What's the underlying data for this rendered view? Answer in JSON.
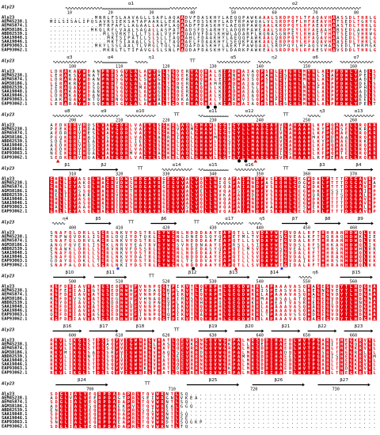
{
  "ref_label": "Aly23",
  "names": [
    "Aly23",
    "AEM45238.1",
    "AEM45874.1",
    "AGM38186.1",
    "ABD82539.1",
    "SAA19848.1",
    "SAA19846.1",
    "EAP93063.1",
    "EAP93062.1"
  ],
  "blocks": [
    {
      "structure": [
        "α1",
        "α2"
      ],
      "numbers": [
        "10",
        "20",
        "30",
        "40",
        "50",
        "60",
        "70",
        "80"
      ],
      "rows": [
        "...........MNRLFSLAAVAGLLSAPLAQAADVFDASKHYLAEQQPAWKAAALSRDPQYLTFAQAVHAASSDLTHRLG",
        "MILSISALIPQSAVRSIEKSATAPAAKLLEKAADLFDSSKHYLADTRPAWQALVLSRDPQFLHFAEAVHATSEDLTGRYG",
        "............MTRFAFLLAGAALLAAPLAQAADFFDASKHYLAEQRPAWQAALKRDPQYLRFAEAVHAASTDLTHRLG",
        "..........MKQLRFLVAALSAGALLASPATAADSFDSARHYLADQRPAWEAALSRDPEYLRFAEAAHARSEDLAHRFG",
        ".............MLSVRKTLLLTSLALVVPPAQADVFDASKHWLADARPLWQNASGNPEYLRHAETVHATSEDLVHRWG",
        "..............MKTSIPATLLSLSLLTAQAAHLFDAAKHYLAEQQPAWKAALQRDPQYLRFAQAVHAASEDLTHRLG",
        "..............MKTSIAAALLSLSLLTAQAAELFDAAKHYLSEQKPAWKAALERDPQYLRFAQAVHAASEDLTHRLG",
        "...........MKYLSSLAALTLVMGLTQLSAAQAFDASKHYLAEKTPAWQAALSRDPQYLHFAQSVHAASEDLTHRMGK",
        ".............MKRLTLTIFAVGLSLSNLFAQDAFDASKHYLDARKPAWKEALSRDPQYLRFAESVHAVSDDLTHRLG"
      ]
    },
    {
      "structure": [
        "α3",
        "α4",
        "η1",
        "TT",
        "α5",
        "η2",
        "α6",
        "α7"
      ],
      "numbers": [
        "100",
        "110",
        "120",
        "130",
        "140",
        "150",
        "160"
      ],
      "rows": [
        "LDRAKAYWDANPNDSGVLALAWYGLTGDERYAQHALKIADWAIAQPSHLETGHLMYNLALPYDWLYADLS",
        "LERAKSYWNATPNDSAVLALAWYALSGDEKYAQHALDIANWAVQQPAHLESGHLMYNLSLAYDWLYPELS",
        "LDRARAYWDANPNDSGVLALSWYGLTGDERYAQHALEIADWAISQPSHLETGHLMYNLALPYDWLYADLT",
        "LERAKRYWDSAPNDTGVLALAWYALTGDERYAEHAMRIADWAIAQPTHLETGHLLYNLALPYDWLYDELS",
        "IERAQAYWDSQPNDSGVLAMAWYGLSGNEKYAQHSLKIAEWAISLPSHLETGHLMYNFALPYDWLYPHLS",
        "LDRAKAYWDANPNDSGVLALAWYGLTGDERYAQHALKIADWAIAQPSHLETGHLMYNLALPYDWLYADLS",
        "LDRAKAYWDANPNDSGVLALAWYGLTGDEKYAQHALKIADWAIAQPSHLETGHLMYNLALPYDWLYADLS",
        "LAKAQAYWNTQPNDNGVLALGWYALTGDKAYAQHALTIARWVISQPSHFETGHLMYNLALPYDWLYEELS",
        "LERARAYWDSQPNDSGVLALAWYALTGDERYAQHALKIADWAIAQPSHLESGHLMYNLALPYDWLYPELT"
      ]
    },
    {
      "structure": [
        "α8",
        "α9",
        "α10",
        "TT",
        "α11",
        "α12",
        "TT",
        "η3",
        "α13"
      ],
      "numbers": [
        "200",
        "210",
        "220",
        "230",
        "240",
        "250",
        "260"
      ],
      "rows": [
        "AEDKQRVHQSLVAYGDRLVAEYLSGKRLAQLGHAWLGGTGYLLMADGAEVLAHAAHLKFPQAAELLRQAR",
        "PEEKQRIHDALVAYGDRLVAEYLSGKRVAQMGHAWLGGTGYLLMADGAEILAHAAHLKYPQASELLKRAR",
        "AEDRQRVHESLVAYGDRLVAEYLSGKRLAQLGHAWLGGTGYLLMADGAEVLAHAAHLKFPQAAELLRQAR",
        "PEQKQRIHASLVSYGDRLVAEYLAGRRIAQLGHAWMGGTGYLLMADGAEALAHAAHMKFPDAAALLRQAR",
        "SDEKQRLHEALVAYGDRLIEEYLSGKRLAQLGHAWLGGSGYLLMADGAEVLAHAAHLKYPDAAELLRKAR",
        "AEDKQRVHQSLVAYGDRLVAEYLSGKRLAQLGHAWLGGTGYLLMADGAEVLAHAAHLKFPQAAELLRQAR",
        "AEDKQRVHQSLVAYGDRLVAEYLSGKRLAQLGHAWLGGTGYLLMADGAEVLAHAAHLKFPQAAELLRQAR",
        "NEEKQRIHQALVAYGDRMVAEYLAGKRLAQLGHAWLGGTGYLLMADGAEILSHAAHLKFPQATELLRQAR",
        "SEDKQRVHQALVAYGDRLVAEYLSGKRLAQLGHAWLGGTGYLLMADGAEVLAHAAHLRFPEAAELLRQAR"
      ]
    },
    {
      "structure": [
        "β1",
        "β2",
        "TT",
        "α14",
        "α15",
        "α16",
        "TT",
        "β3",
        "β4"
      ],
      "numbers": [
        "310",
        "320",
        "330",
        "340",
        "350",
        "360",
        "370"
      ],
      "rows": [
        "GHLLEYASQLHAGRIDWSHDGAYRGEGVYALYQLLNVQAFAIANDFVSRQHLGEGWDKLFTTTDSGAVRP",
        "GHLLEYAKQLHAGRVDWSHDGAYREEGVYALYQLLNIQSFAIANDFASRQHLGDGWDKLFTTTDSGAVRA",
        "GHLLEYASQLHAGRIDWSHDGAYRGEGVYALYQLLNVQAFAIANDFVSRQHLGEGWDKLFTTTDSGAVRP",
        "GRLLEYSSQLHAGRIDWTHDGAYRGEGVYALYELLNVQAFSIANDFVSRQHLGEGWDKLFSSTDSGAIRP",
        "GELIEYAKRLHAGRVDWSHDGAYRGEGVYALYQLLNVKAFAIADDFVSRQHLGEGWQRLFTTSDSGALRP",
        "GHLLEYASQLHAGRIDWSHDGAYRGEGVYALYQLLNVQAFAIANDFVSRQHLGEGWDKLFTTTDSGAVRP",
        "GHLLEYASQLHAGRIDWSHDGAYRGEGVYALYQLLNVQAFAIANDFVSRQHLGEGWDKLFTTTDSGAVRP",
        "GALLEYAAQLHSGRIDWSHDGAYRGEGVYSLYQLLNVQAFAIANDFVARQHLGESWEKLFTTTDSGALRP",
        "GHLLEYASQLHAGRIDWSHDGAYRGEGVYALYQLLNVQAFAIANDFVSRQHLGEGWDKLFTTTDSGAVRP"
      ]
    },
    {
      "structure": [
        "η4",
        "β5",
        "TT",
        "β6",
        "TT",
        "α17",
        "η5",
        "β7",
        "β8",
        "β9"
      ],
      "numbers": [
        "400",
        "410",
        "420",
        "430",
        "440",
        "450",
        "460"
      ],
      "rows": [
        "SNAFQLDRLLSGRLNKVYDSTRLGYWGNLNDDDAAYEAPQTLLSVDAYWTGVDALRFTHHRANHDWQLVK",
        "TNPWQVDKLISGRLDQIYDTQKLGYWGNLDNEDSQYQAPETMLTVDAYWSGVEALKFTHQRAQHDWKLIE",
        "SNAFQLDRVLAGRLNKVYDSTRLGYWGNLNDDDAAFEAPQTLLSVDAYWTGVDALRFTHHRANHDWQLVK",
        "ANGFQVERLISGKLNRVYEATRVGYWGSVNEDNAAYEAPRSLLSIDAYWTGVDSLRFSHHKANHDWQLIK",
        "ENAWKLDRLLSGRVNNVFDSSRLGYWGNLNDEDASYQAPQTLMSVDAYWSGVEALRYTHHRSNHDWHLVR",
        "SNAFQLDRLLSGRLNKVYDSTRLGYWGNLNDDDAAYEAPQTLLSVDAYWTGVDALRFTHHRANHDWQLVK",
        "SNAFQLDRLLSGRLNKVYDATRLGYWGNLNDDDAAYEAPQTLLSVDAYWTGVDALRFTHHRANHDWQLVK",
        "GDAYQLDKLLTGRLNEVYDSTRLGYWGNLTEDDVAYEAPQTLLSVDAYWTGVDAIRFTHHRSNHDWQLVK",
        "SNAFALDRLLSGRLNKIYDSTRLGYWGNLNDDDAAYEAPQTLLSVDAYWTGIDALRFTHHRANHDWQLVK"
      ]
    },
    {
      "structure": [
        "β10",
        "β11",
        "TT",
        "β12",
        "β13",
        "β14",
        "η6",
        "β15"
      ],
      "numbers": [
        "500",
        "510",
        "520",
        "530",
        "540",
        "550",
        "560"
      ],
      "rows": [
        "KGFDRIAVVATGSEDNWVFVNNPQGTPIKVTLQYRPHLGEGDWRRLAPAAAVASQHAGEGVDYTLHDGHA",
        "KGFERIAIVGTGSEDNWAFVNDAQGKPLKVTLEYRPHLGEGDWRRISPEASVASLHEGNGVEYTLHDGRA",
        "KGFDRIAVVATGSEDNWVFVNNPQGTPIKVTLQYRPHLGEGDWRRLAPAAAVASQHAGEGVDYTLHDGHA",
        "RGFDRVSVVATGSEGNWVFVHNAQGEPIRVSLQYRPHLGEGDWRRMAPASALATQHTGEGVDYTLHDGNA",
        "KGYDRIAVVSTGSDDNWLFVNQPNGVPLKVTLHYRPQLGEGDWKRLAPEATVASRHEGEGIDYTLHNGHA",
        "KGFDRIAVVATGSEDNWVFVNNPQGTPIKVTLQYRPHLGEGDWRRLAPAAAVASQHAGEGVDYTLHDGHA",
        "KGFDRIAVVATGSEDNWVFVNNPQGTPIKVTLQYRPHLGEGDWRRLAPAAAVASQHAGEGVDYTLHDGHA",
        "QGFDRIAVVASGSEDNWVFINNPQGQPIKVTLAYRPHLGEGDWRRLTPAAAVSSQHDGEGVDYTLHDGHA",
        "KGFDRIAVVATGSEDNWVFVNNPQGTPIKVTLQYRPHLGEGDWRRLAPAAAVASQHAGEGVDYTLHDGHA"
      ]
    },
    {
      "structure": [
        "β16",
        "β17",
        "β18",
        "TT",
        "β19",
        "β20",
        "β21",
        "β22",
        "β23"
      ],
      "numbers": [
        "600",
        "610",
        "620",
        "630",
        "640",
        "650",
        "660"
      ],
      "rows": [
        "RKVLIKGLSTDSSQYVIGWNRGVHATLQEVRRNGQVWGRPALMRSDDIHAEDLWVTPGARLTHEGKRVYL",
        "RKVLVKGLSTDSAQYVIGWNRGLHASLQEVKRNGQVWGKPALLRSEDIHAEDLWVTPGARITHEGQRVYL",
        "RKVLIKGLSTDSSQYVIGWNRGVHATLQEVRRNGQVWGRPALMRSDDIHAEDLWVTPGARLTHEGKRVYL",
        "RKVMIKGLSADSSRYVIGWNRGVHAQLSEVRRDGQVWGRPALMRSDDIHADDLWVTPGSRLTHEGRRLYL",
        "KKVLIKGLNTDSSQYIIGWNRGVHSTLEEVRRNGQVWGRPAMMRSDDIHAEELWVTPGARISHEGKRVYM",
        "RKVLIKGLSTDSSQYVIGWNRGVHATLQEVRRNGQVWGRPALMRSDDIHAEDLWVTPGARLTHEGKRVYL",
        "RKVLIKGLSTDSSQYVIGWNRGVHATLQEVRRNGQVWGRPALMRSDDIHAEDLWVTPGARLTHEGKRVYL",
        "RKVLIKGLSTDSSQYVIGWNKGVHATLDEVRRNGQVWGKPALMRSDDIHAEDLWVTPGARLTHDGKRVYL",
        "RKVLIKGLSTDSSQYVIGWNRGVHATLQEVRRNGQVWGRPALMRSDDIHAEDLWVTPGARLTHEGKRVYL"
      ]
    },
    {
      "structure": [
        "β24",
        "TT",
        "β25",
        "β26",
        "β27"
      ],
      "numbers": [
        "700",
        "710",
        "720",
        "730"
      ],
      "rows": [
        "SDGLIALYEQRPDADAPRLTQVWRNTLSQ.......................................",
        "ADGLVALYEERPDAGTPRLSEIWRGNLVKEA.....................................",
        "SDGLIALYEQRPDADAPRLTQVWRNTLSQ.......................................",
        "ADGLIALYSQRPDAEKPVLTQVWREALGGQ......................................",
        "ENGLIALYEQRPDADGPRLSQIWRSTL.........................................",
        "SDGLIALYEQRPDADAPRLTQVWRNTLSQ.......................................",
        "SDGLIALYEQRPDADAPRLTQVWRNTLSE.......................................",
        "SNGLIALYEQRPDAEAPRLTQVWRDTLSQGKP....................................",
        "SDGLIALYEQRPDADAPRLTQVWRNTLTQ......................................."
      ]
    }
  ]
}
